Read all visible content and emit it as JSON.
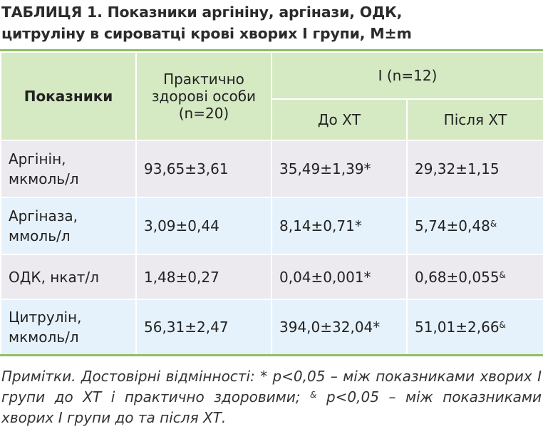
{
  "title": {
    "line1": "ТАБЛИЦЯ 1. Показники аргініну, аргінази, ОДК,",
    "line2": "цитруліну в сироватці крові хворих І групи, M±m"
  },
  "table": {
    "headers": {
      "indicators": "Показники",
      "healthy": "Практично здорові особи (n=20)",
      "group": "І (n=12)",
      "before": "До ХТ",
      "after": "Після ХТ"
    },
    "rows": [
      {
        "name": "Аргінін, мкмоль/л",
        "healthy": "93,65±3,61",
        "before": "35,49±1,39*",
        "after": "29,32±1,15",
        "after_mark": ""
      },
      {
        "name": "Аргіназа, ммоль/л",
        "healthy": "3,09±0,44",
        "before": "8,14±0,71*",
        "after": "5,74±0,48",
        "after_mark": "&"
      },
      {
        "name": "ОДК, нкат/л",
        "healthy": "1,48±0,27",
        "before": "0,04±0,001*",
        "after": "0,68±0,055",
        "after_mark": "&"
      },
      {
        "name": "Цитрулін, мкмоль/л",
        "healthy": "56,31±2,47",
        "before": "394,0±32,04*",
        "after": "51,01±2,66",
        "after_mark": "&"
      }
    ]
  },
  "note": {
    "part1": "Примітки. Достовірні відмінності: * р<0,05 – між показниками хворих І групи до ХТ і практично здоровими; ",
    "mark": "&",
    "part2": " р<0,05 – між показниками хворих І групи до та після ХТ."
  },
  "colors": {
    "accent_green": "#8fbf65",
    "header_bg": "#d5e9c3",
    "row_gray": "#ece9ef",
    "row_blue": "#e6f2fb"
  }
}
